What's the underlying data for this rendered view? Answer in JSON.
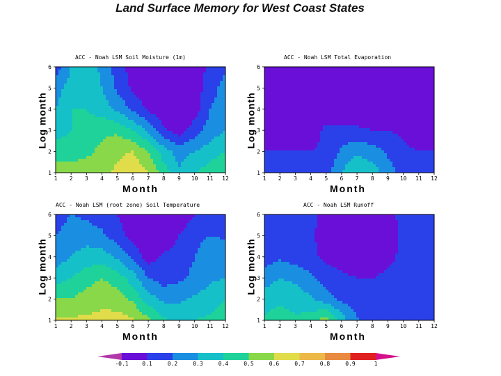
{
  "title": "Land Surface Memory for West Coast States",
  "chart_data": [
    {
      "type": "heatmap",
      "title": "ACC - Noah LSM Soil Moisture (1m)",
      "xlabel": "Month",
      "ylabel": "Log month",
      "x": [
        1,
        2,
        3,
        4,
        5,
        6,
        7,
        8,
        9,
        10,
        11,
        12
      ],
      "y": [
        1,
        2,
        3,
        4,
        5,
        6
      ],
      "xlim": [
        1,
        12
      ],
      "ylim": [
        1,
        6
      ],
      "values": [
        [
          0.55,
          0.55,
          0.55,
          0.58,
          0.62,
          0.68,
          0.6,
          0.45,
          0.32,
          0.4,
          0.45,
          0.5
        ],
        [
          0.45,
          0.45,
          0.48,
          0.52,
          0.58,
          0.6,
          0.5,
          0.35,
          0.25,
          0.3,
          0.35,
          0.4
        ],
        [
          0.35,
          0.4,
          0.45,
          0.48,
          0.48,
          0.4,
          0.28,
          0.12,
          0.05,
          0.15,
          0.25,
          0.3
        ],
        [
          0.3,
          0.4,
          0.4,
          0.35,
          0.28,
          0.18,
          0.08,
          0.02,
          0.0,
          0.05,
          0.2,
          0.25
        ],
        [
          0.25,
          0.35,
          0.4,
          0.3,
          0.18,
          0.08,
          0.02,
          0.0,
          0.0,
          0.05,
          0.15,
          0.25
        ],
        [
          0.15,
          0.3,
          0.35,
          0.28,
          0.15,
          0.05,
          0.0,
          0.0,
          0.0,
          0.05,
          0.12,
          0.18
        ]
      ]
    },
    {
      "type": "heatmap",
      "title": "ACC - Noah LSM Total Evaporation",
      "xlabel": "Month",
      "ylabel": "Log month",
      "x": [
        1,
        2,
        3,
        4,
        5,
        6,
        7,
        8,
        9,
        10,
        11,
        12
      ],
      "y": [
        1,
        2,
        3,
        4,
        5,
        6
      ],
      "xlim": [
        1,
        12
      ],
      "ylim": [
        1,
        6
      ],
      "values": [
        [
          0.15,
          0.12,
          0.15,
          0.15,
          0.15,
          0.3,
          0.4,
          0.35,
          0.25,
          0.15,
          0.15,
          0.15
        ],
        [
          0.1,
          0.1,
          0.1,
          0.1,
          0.12,
          0.22,
          0.28,
          0.25,
          0.18,
          0.12,
          0.1,
          0.1
        ],
        [
          0.05,
          0.05,
          0.05,
          0.05,
          0.12,
          0.12,
          0.12,
          0.1,
          0.1,
          0.08,
          0.05,
          0.05
        ],
        [
          0.02,
          0.02,
          0.02,
          0.02,
          0.05,
          0.02,
          0.02,
          0.02,
          0.02,
          0.02,
          0.02,
          0.02
        ],
        [
          0.02,
          0.02,
          0.02,
          0.02,
          0.02,
          0.02,
          0.02,
          0.02,
          0.02,
          0.02,
          0.02,
          0.02
        ],
        [
          0.02,
          0.02,
          0.02,
          0.02,
          0.02,
          0.02,
          0.02,
          0.02,
          0.02,
          0.02,
          0.02,
          0.02
        ]
      ]
    },
    {
      "type": "heatmap",
      "title": "ACC - Noah LSM (root zone) Soil Temperature",
      "xlabel": "Month",
      "ylabel": "Log month",
      "x": [
        1,
        2,
        3,
        4,
        5,
        6,
        7,
        8,
        9,
        10,
        11,
        12
      ],
      "y": [
        1,
        2,
        3,
        4,
        5,
        6
      ],
      "xlim": [
        1,
        12
      ],
      "ylim": [
        1,
        6
      ],
      "values": [
        [
          0.62,
          0.62,
          0.62,
          0.62,
          0.64,
          0.62,
          0.52,
          0.42,
          0.38,
          0.4,
          0.42,
          0.45
        ],
        [
          0.5,
          0.5,
          0.55,
          0.58,
          0.55,
          0.48,
          0.35,
          0.28,
          0.28,
          0.32,
          0.35,
          0.4
        ],
        [
          0.35,
          0.4,
          0.45,
          0.5,
          0.45,
          0.35,
          0.2,
          0.15,
          0.18,
          0.22,
          0.28,
          0.3
        ],
        [
          0.25,
          0.3,
          0.35,
          0.35,
          0.28,
          0.18,
          0.05,
          0.12,
          0.15,
          0.2,
          0.3,
          0.3
        ],
        [
          0.2,
          0.25,
          0.25,
          0.22,
          0.15,
          0.05,
          0.0,
          0.02,
          0.1,
          0.15,
          0.2,
          0.18
        ],
        [
          0.15,
          0.2,
          0.18,
          0.15,
          0.1,
          0.03,
          0.0,
          0.0,
          0.05,
          0.1,
          0.15,
          0.12
        ]
      ]
    },
    {
      "type": "heatmap",
      "title": "ACC - Noah LSM Runoff",
      "xlabel": "Month",
      "ylabel": "Log month",
      "x": [
        1,
        2,
        3,
        4,
        5,
        6,
        7,
        8,
        9,
        10,
        11,
        12
      ],
      "y": [
        1,
        2,
        3,
        4,
        5,
        6
      ],
      "xlim": [
        1,
        12
      ],
      "ylim": [
        1,
        6
      ],
      "values": [
        [
          0.42,
          0.45,
          0.42,
          0.45,
          0.55,
          0.35,
          0.22,
          0.12,
          0.12,
          0.12,
          0.12,
          0.12
        ],
        [
          0.35,
          0.38,
          0.35,
          0.32,
          0.25,
          0.18,
          0.12,
          0.12,
          0.12,
          0.12,
          0.12,
          0.12
        ],
        [
          0.25,
          0.3,
          0.28,
          0.22,
          0.15,
          0.12,
          0.1,
          0.1,
          0.12,
          0.12,
          0.12,
          0.12
        ],
        [
          0.15,
          0.18,
          0.15,
          0.12,
          0.08,
          0.05,
          0.03,
          0.03,
          0.08,
          0.12,
          0.12,
          0.12
        ],
        [
          0.12,
          0.12,
          0.12,
          0.12,
          0.05,
          0.02,
          0.0,
          0.0,
          0.05,
          0.12,
          0.12,
          0.12
        ],
        [
          0.12,
          0.12,
          0.12,
          0.12,
          0.08,
          0.02,
          0.0,
          0.0,
          0.08,
          0.12,
          0.12,
          0.12
        ]
      ]
    }
  ],
  "colorbar": {
    "labels": [
      "-0.1",
      "0.1",
      "0.2",
      "0.3",
      "0.4",
      "0.5",
      "0.6",
      "0.7",
      "0.8",
      "0.9",
      "1"
    ],
    "colors": [
      "#6a0fd8",
      "#2a40e8",
      "#1a8ee0",
      "#16c0c8",
      "#1ed29a",
      "#88d84a",
      "#e0dc4a",
      "#ecb848",
      "#e88a40",
      "#e02020"
    ],
    "end_colors": [
      "#b038a8",
      "#d4108a"
    ]
  }
}
